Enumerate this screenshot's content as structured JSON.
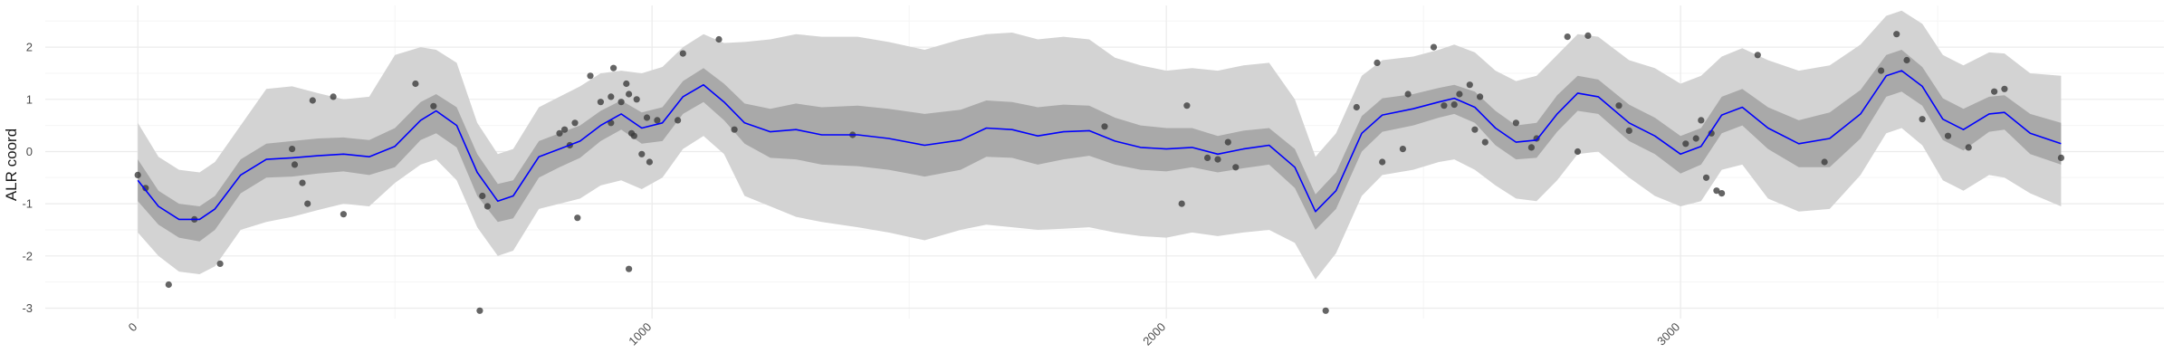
{
  "chart_data": {
    "type": "line",
    "title": "",
    "xlabel": "",
    "ylabel": "ALR coord",
    "xlim": [
      -180,
      3940
    ],
    "ylim": [
      -3.2,
      2.8
    ],
    "x_ticks": [
      0,
      1000,
      2000,
      3000
    ],
    "x_tick_labels": [
      "0",
      "1000",
      "2000",
      "3000"
    ],
    "y_ticks": [
      -3,
      -2,
      -1,
      0,
      1,
      2
    ],
    "y_tick_labels": [
      "-3",
      "-2",
      "-1",
      "0",
      "1",
      "2"
    ],
    "grid": true,
    "legend": "none",
    "colors": {
      "mean_line": "#0000ff",
      "inner_band": "#a9a9a9",
      "outer_band": "#d3d3d3",
      "points": "#3a3a3a",
      "grid_major": "#ebebeb",
      "grid_minor": "#f5f5f5"
    },
    "mean_curve": [
      [
        0,
        -0.55
      ],
      [
        40,
        -1.05
      ],
      [
        80,
        -1.3
      ],
      [
        120,
        -1.3
      ],
      [
        150,
        -1.1
      ],
      [
        200,
        -0.45
      ],
      [
        250,
        -0.15
      ],
      [
        300,
        -0.12
      ],
      [
        350,
        -0.08
      ],
      [
        400,
        -0.05
      ],
      [
        450,
        -0.1
      ],
      [
        500,
        0.1
      ],
      [
        550,
        0.6
      ],
      [
        580,
        0.78
      ],
      [
        620,
        0.5
      ],
      [
        660,
        -0.4
      ],
      [
        700,
        -0.95
      ],
      [
        730,
        -0.85
      ],
      [
        780,
        -0.1
      ],
      [
        820,
        0.05
      ],
      [
        860,
        0.2
      ],
      [
        900,
        0.5
      ],
      [
        940,
        0.72
      ],
      [
        980,
        0.45
      ],
      [
        1020,
        0.55
      ],
      [
        1060,
        1.05
      ],
      [
        1100,
        1.28
      ],
      [
        1140,
        0.95
      ],
      [
        1180,
        0.55
      ],
      [
        1230,
        0.38
      ],
      [
        1280,
        0.42
      ],
      [
        1330,
        0.32
      ],
      [
        1400,
        0.32
      ],
      [
        1460,
        0.25
      ],
      [
        1530,
        0.12
      ],
      [
        1600,
        0.22
      ],
      [
        1650,
        0.45
      ],
      [
        1700,
        0.42
      ],
      [
        1750,
        0.3
      ],
      [
        1800,
        0.38
      ],
      [
        1850,
        0.4
      ],
      [
        1900,
        0.2
      ],
      [
        1950,
        0.08
      ],
      [
        2000,
        0.05
      ],
      [
        2050,
        0.08
      ],
      [
        2100,
        -0.05
      ],
      [
        2150,
        0.05
      ],
      [
        2200,
        0.12
      ],
      [
        2250,
        -0.3
      ],
      [
        2290,
        -1.15
      ],
      [
        2330,
        -0.75
      ],
      [
        2380,
        0.35
      ],
      [
        2420,
        0.7
      ],
      [
        2480,
        0.82
      ],
      [
        2530,
        0.95
      ],
      [
        2560,
        1.02
      ],
      [
        2600,
        0.85
      ],
      [
        2640,
        0.45
      ],
      [
        2680,
        0.18
      ],
      [
        2720,
        0.22
      ],
      [
        2760,
        0.72
      ],
      [
        2800,
        1.12
      ],
      [
        2840,
        1.05
      ],
      [
        2900,
        0.55
      ],
      [
        2950,
        0.3
      ],
      [
        3000,
        -0.05
      ],
      [
        3040,
        0.1
      ],
      [
        3080,
        0.7
      ],
      [
        3120,
        0.85
      ],
      [
        3170,
        0.45
      ],
      [
        3230,
        0.15
      ],
      [
        3290,
        0.25
      ],
      [
        3350,
        0.72
      ],
      [
        3400,
        1.45
      ],
      [
        3430,
        1.55
      ],
      [
        3470,
        1.25
      ],
      [
        3510,
        0.62
      ],
      [
        3550,
        0.42
      ],
      [
        3600,
        0.72
      ],
      [
        3630,
        0.75
      ],
      [
        3680,
        0.35
      ],
      [
        3740,
        0.15
      ]
    ],
    "inner_band": [
      [
        0,
        -0.15,
        -0.95
      ],
      [
        40,
        -0.75,
        -1.4
      ],
      [
        80,
        -1.0,
        -1.65
      ],
      [
        120,
        -1.05,
        -1.72
      ],
      [
        150,
        -0.85,
        -1.5
      ],
      [
        200,
        -0.15,
        -0.8
      ],
      [
        250,
        0.15,
        -0.5
      ],
      [
        300,
        0.2,
        -0.48
      ],
      [
        350,
        0.25,
        -0.42
      ],
      [
        400,
        0.27,
        -0.38
      ],
      [
        450,
        0.22,
        -0.45
      ],
      [
        500,
        0.45,
        -0.3
      ],
      [
        550,
        0.95,
        0.22
      ],
      [
        580,
        1.1,
        0.35
      ],
      [
        620,
        0.85,
        0.08
      ],
      [
        660,
        -0.05,
        -0.85
      ],
      [
        700,
        -0.62,
        -1.35
      ],
      [
        730,
        -0.55,
        -1.28
      ],
      [
        780,
        0.2,
        -0.5
      ],
      [
        820,
        0.35,
        -0.3
      ],
      [
        860,
        0.5,
        -0.12
      ],
      [
        900,
        0.78,
        0.2
      ],
      [
        940,
        0.98,
        0.42
      ],
      [
        980,
        0.75,
        0.15
      ],
      [
        1020,
        0.85,
        0.2
      ],
      [
        1060,
        1.35,
        0.72
      ],
      [
        1100,
        1.6,
        0.95
      ],
      [
        1140,
        1.3,
        0.6
      ],
      [
        1180,
        0.92,
        0.15
      ],
      [
        1230,
        0.82,
        -0.12
      ],
      [
        1280,
        0.92,
        -0.15
      ],
      [
        1330,
        0.85,
        -0.25
      ],
      [
        1400,
        0.88,
        -0.28
      ],
      [
        1460,
        0.82,
        -0.35
      ],
      [
        1530,
        0.72,
        -0.48
      ],
      [
        1600,
        0.8,
        -0.35
      ],
      [
        1650,
        0.98,
        -0.1
      ],
      [
        1700,
        0.95,
        -0.12
      ],
      [
        1750,
        0.85,
        -0.25
      ],
      [
        1800,
        0.9,
        -0.15
      ],
      [
        1850,
        0.88,
        -0.08
      ],
      [
        1900,
        0.65,
        -0.25
      ],
      [
        1950,
        0.5,
        -0.35
      ],
      [
        2000,
        0.45,
        -0.38
      ],
      [
        2050,
        0.45,
        -0.3
      ],
      [
        2100,
        0.3,
        -0.4
      ],
      [
        2150,
        0.4,
        -0.32
      ],
      [
        2200,
        0.45,
        -0.25
      ],
      [
        2250,
        0.05,
        -0.7
      ],
      [
        2290,
        -0.82,
        -1.5
      ],
      [
        2330,
        -0.4,
        -1.1
      ],
      [
        2380,
        0.68,
        0.0
      ],
      [
        2420,
        1.02,
        0.38
      ],
      [
        2480,
        1.1,
        0.5
      ],
      [
        2530,
        1.22,
        0.65
      ],
      [
        2560,
        1.28,
        0.72
      ],
      [
        2600,
        1.15,
        0.55
      ],
      [
        2640,
        0.78,
        0.12
      ],
      [
        2680,
        0.5,
        -0.15
      ],
      [
        2720,
        0.55,
        -0.12
      ],
      [
        2760,
        1.08,
        0.38
      ],
      [
        2800,
        1.45,
        0.78
      ],
      [
        2840,
        1.38,
        0.72
      ],
      [
        2900,
        0.9,
        0.2
      ],
      [
        2950,
        0.65,
        -0.05
      ],
      [
        3000,
        0.3,
        -0.42
      ],
      [
        3040,
        0.45,
        -0.25
      ],
      [
        3080,
        1.05,
        0.35
      ],
      [
        3120,
        1.2,
        0.5
      ],
      [
        3170,
        0.85,
        0.05
      ],
      [
        3230,
        0.6,
        -0.3
      ],
      [
        3290,
        0.75,
        -0.3
      ],
      [
        3350,
        1.18,
        0.25
      ],
      [
        3400,
        1.85,
        1.05
      ],
      [
        3430,
        1.95,
        1.15
      ],
      [
        3470,
        1.62,
        0.88
      ],
      [
        3510,
        1.02,
        0.22
      ],
      [
        3550,
        0.82,
        0.02
      ],
      [
        3600,
        1.05,
        0.38
      ],
      [
        3630,
        1.08,
        0.42
      ],
      [
        3680,
        0.72,
        -0.05
      ],
      [
        3740,
        0.55,
        -0.25
      ]
    ],
    "outer_band": [
      [
        0,
        0.55,
        -1.55
      ],
      [
        40,
        -0.1,
        -2.0
      ],
      [
        80,
        -0.35,
        -2.3
      ],
      [
        120,
        -0.4,
        -2.35
      ],
      [
        150,
        -0.2,
        -2.2
      ],
      [
        200,
        0.5,
        -1.5
      ],
      [
        250,
        1.2,
        -1.35
      ],
      [
        300,
        1.25,
        -1.25
      ],
      [
        350,
        1.12,
        -1.12
      ],
      [
        400,
        1.0,
        -1.0
      ],
      [
        450,
        1.05,
        -1.05
      ],
      [
        500,
        1.85,
        -0.6
      ],
      [
        550,
        2.0,
        -0.25
      ],
      [
        580,
        1.95,
        -0.15
      ],
      [
        620,
        1.7,
        -0.55
      ],
      [
        660,
        0.55,
        -1.45
      ],
      [
        700,
        -0.05,
        -2.0
      ],
      [
        730,
        0.05,
        -1.9
      ],
      [
        780,
        0.85,
        -1.1
      ],
      [
        820,
        1.05,
        -1.0
      ],
      [
        860,
        1.25,
        -0.9
      ],
      [
        900,
        1.5,
        -0.65
      ],
      [
        940,
        1.55,
        -0.55
      ],
      [
        980,
        1.5,
        -0.72
      ],
      [
        1020,
        1.62,
        -0.5
      ],
      [
        1060,
        2.0,
        0.05
      ],
      [
        1100,
        2.25,
        0.3
      ],
      [
        1140,
        2.08,
        -0.05
      ],
      [
        1180,
        2.1,
        -0.85
      ],
      [
        1230,
        2.15,
        -1.05
      ],
      [
        1280,
        2.25,
        -1.25
      ],
      [
        1330,
        2.2,
        -1.35
      ],
      [
        1400,
        2.2,
        -1.45
      ],
      [
        1460,
        2.1,
        -1.55
      ],
      [
        1530,
        1.95,
        -1.7
      ],
      [
        1600,
        2.15,
        -1.5
      ],
      [
        1650,
        2.25,
        -1.4
      ],
      [
        1700,
        2.28,
        -1.45
      ],
      [
        1750,
        2.15,
        -1.5
      ],
      [
        1800,
        2.2,
        -1.48
      ],
      [
        1850,
        2.15,
        -1.45
      ],
      [
        1900,
        1.8,
        -1.55
      ],
      [
        1950,
        1.65,
        -1.62
      ],
      [
        2000,
        1.55,
        -1.65
      ],
      [
        2050,
        1.6,
        -1.55
      ],
      [
        2100,
        1.55,
        -1.62
      ],
      [
        2150,
        1.65,
        -1.55
      ],
      [
        2200,
        1.7,
        -1.5
      ],
      [
        2250,
        1.0,
        -1.75
      ],
      [
        2290,
        -0.1,
        -2.45
      ],
      [
        2330,
        0.35,
        -1.95
      ],
      [
        2380,
        1.45,
        -0.85
      ],
      [
        2420,
        1.75,
        -0.45
      ],
      [
        2480,
        1.82,
        -0.35
      ],
      [
        2530,
        1.95,
        -0.2
      ],
      [
        2560,
        2.05,
        -0.15
      ],
      [
        2600,
        1.9,
        -0.35
      ],
      [
        2640,
        1.55,
        -0.65
      ],
      [
        2680,
        1.35,
        -0.9
      ],
      [
        2720,
        1.45,
        -0.95
      ],
      [
        2760,
        1.85,
        -0.55
      ],
      [
        2800,
        2.25,
        -0.05
      ],
      [
        2840,
        2.2,
        0.0
      ],
      [
        2900,
        1.75,
        -0.5
      ],
      [
        2950,
        1.6,
        -0.85
      ],
      [
        3000,
        1.3,
        -1.05
      ],
      [
        3040,
        1.45,
        -0.95
      ],
      [
        3080,
        1.82,
        -0.35
      ],
      [
        3120,
        1.98,
        -0.25
      ],
      [
        3170,
        1.75,
        -0.9
      ],
      [
        3230,
        1.55,
        -1.15
      ],
      [
        3290,
        1.65,
        -1.1
      ],
      [
        3350,
        2.05,
        -0.45
      ],
      [
        3400,
        2.6,
        0.35
      ],
      [
        3430,
        2.7,
        0.45
      ],
      [
        3470,
        2.45,
        0.12
      ],
      [
        3510,
        1.85,
        -0.55
      ],
      [
        3550,
        1.65,
        -0.75
      ],
      [
        3600,
        1.9,
        -0.45
      ],
      [
        3630,
        1.88,
        -0.5
      ],
      [
        3680,
        1.5,
        -0.8
      ],
      [
        3740,
        1.45,
        -1.05
      ]
    ],
    "points": [
      [
        0,
        -0.45
      ],
      [
        15,
        -0.7
      ],
      [
        60,
        -2.55
      ],
      [
        110,
        -1.3
      ],
      [
        160,
        -2.15
      ],
      [
        300,
        0.05
      ],
      [
        305,
        -0.25
      ],
      [
        320,
        -0.6
      ],
      [
        330,
        -1.0
      ],
      [
        340,
        0.98
      ],
      [
        380,
        1.05
      ],
      [
        400,
        -1.2
      ],
      [
        540,
        1.3
      ],
      [
        575,
        0.87
      ],
      [
        665,
        -3.05
      ],
      [
        670,
        -0.85
      ],
      [
        680,
        -1.05
      ],
      [
        820,
        0.35
      ],
      [
        830,
        0.42
      ],
      [
        840,
        0.12
      ],
      [
        850,
        0.55
      ],
      [
        855,
        -1.27
      ],
      [
        880,
        1.45
      ],
      [
        900,
        0.95
      ],
      [
        920,
        0.55
      ],
      [
        920,
        1.05
      ],
      [
        925,
        1.6
      ],
      [
        940,
        0.95
      ],
      [
        950,
        1.3
      ],
      [
        955,
        -2.25
      ],
      [
        955,
        1.1
      ],
      [
        960,
        0.35
      ],
      [
        965,
        0.3
      ],
      [
        970,
        1.0
      ],
      [
        980,
        -0.05
      ],
      [
        990,
        0.65
      ],
      [
        995,
        -0.2
      ],
      [
        1010,
        0.6
      ],
      [
        1050,
        0.6
      ],
      [
        1060,
        1.88
      ],
      [
        1130,
        2.15
      ],
      [
        1160,
        0.42
      ],
      [
        1390,
        0.32
      ],
      [
        1880,
        0.48
      ],
      [
        2030,
        -1.0
      ],
      [
        2040,
        0.88
      ],
      [
        2080,
        -0.12
      ],
      [
        2100,
        -0.15
      ],
      [
        2120,
        0.18
      ],
      [
        2135,
        -0.3
      ],
      [
        2310,
        -3.05
      ],
      [
        2370,
        0.85
      ],
      [
        2410,
        1.7
      ],
      [
        2420,
        -0.2
      ],
      [
        2460,
        0.05
      ],
      [
        2470,
        1.1
      ],
      [
        2520,
        2.0
      ],
      [
        2540,
        0.88
      ],
      [
        2560,
        0.9
      ],
      [
        2570,
        1.1
      ],
      [
        2590,
        1.28
      ],
      [
        2600,
        0.42
      ],
      [
        2610,
        1.05
      ],
      [
        2620,
        0.18
      ],
      [
        2680,
        0.55
      ],
      [
        2710,
        0.08
      ],
      [
        2720,
        0.25
      ],
      [
        2780,
        2.2
      ],
      [
        2820,
        2.22
      ],
      [
        2800,
        0.0
      ],
      [
        2880,
        0.88
      ],
      [
        2900,
        0.4
      ],
      [
        3010,
        0.15
      ],
      [
        3030,
        0.25
      ],
      [
        3040,
        0.6
      ],
      [
        3050,
        -0.5
      ],
      [
        3060,
        0.35
      ],
      [
        3070,
        -0.75
      ],
      [
        3080,
        -0.8
      ],
      [
        3150,
        1.85
      ],
      [
        3280,
        -0.2
      ],
      [
        3390,
        1.55
      ],
      [
        3420,
        2.25
      ],
      [
        3440,
        1.75
      ],
      [
        3470,
        0.62
      ],
      [
        3520,
        0.3
      ],
      [
        3560,
        0.08
      ],
      [
        3610,
        1.15
      ],
      [
        3630,
        1.2
      ],
      [
        3740,
        -0.12
      ]
    ]
  }
}
